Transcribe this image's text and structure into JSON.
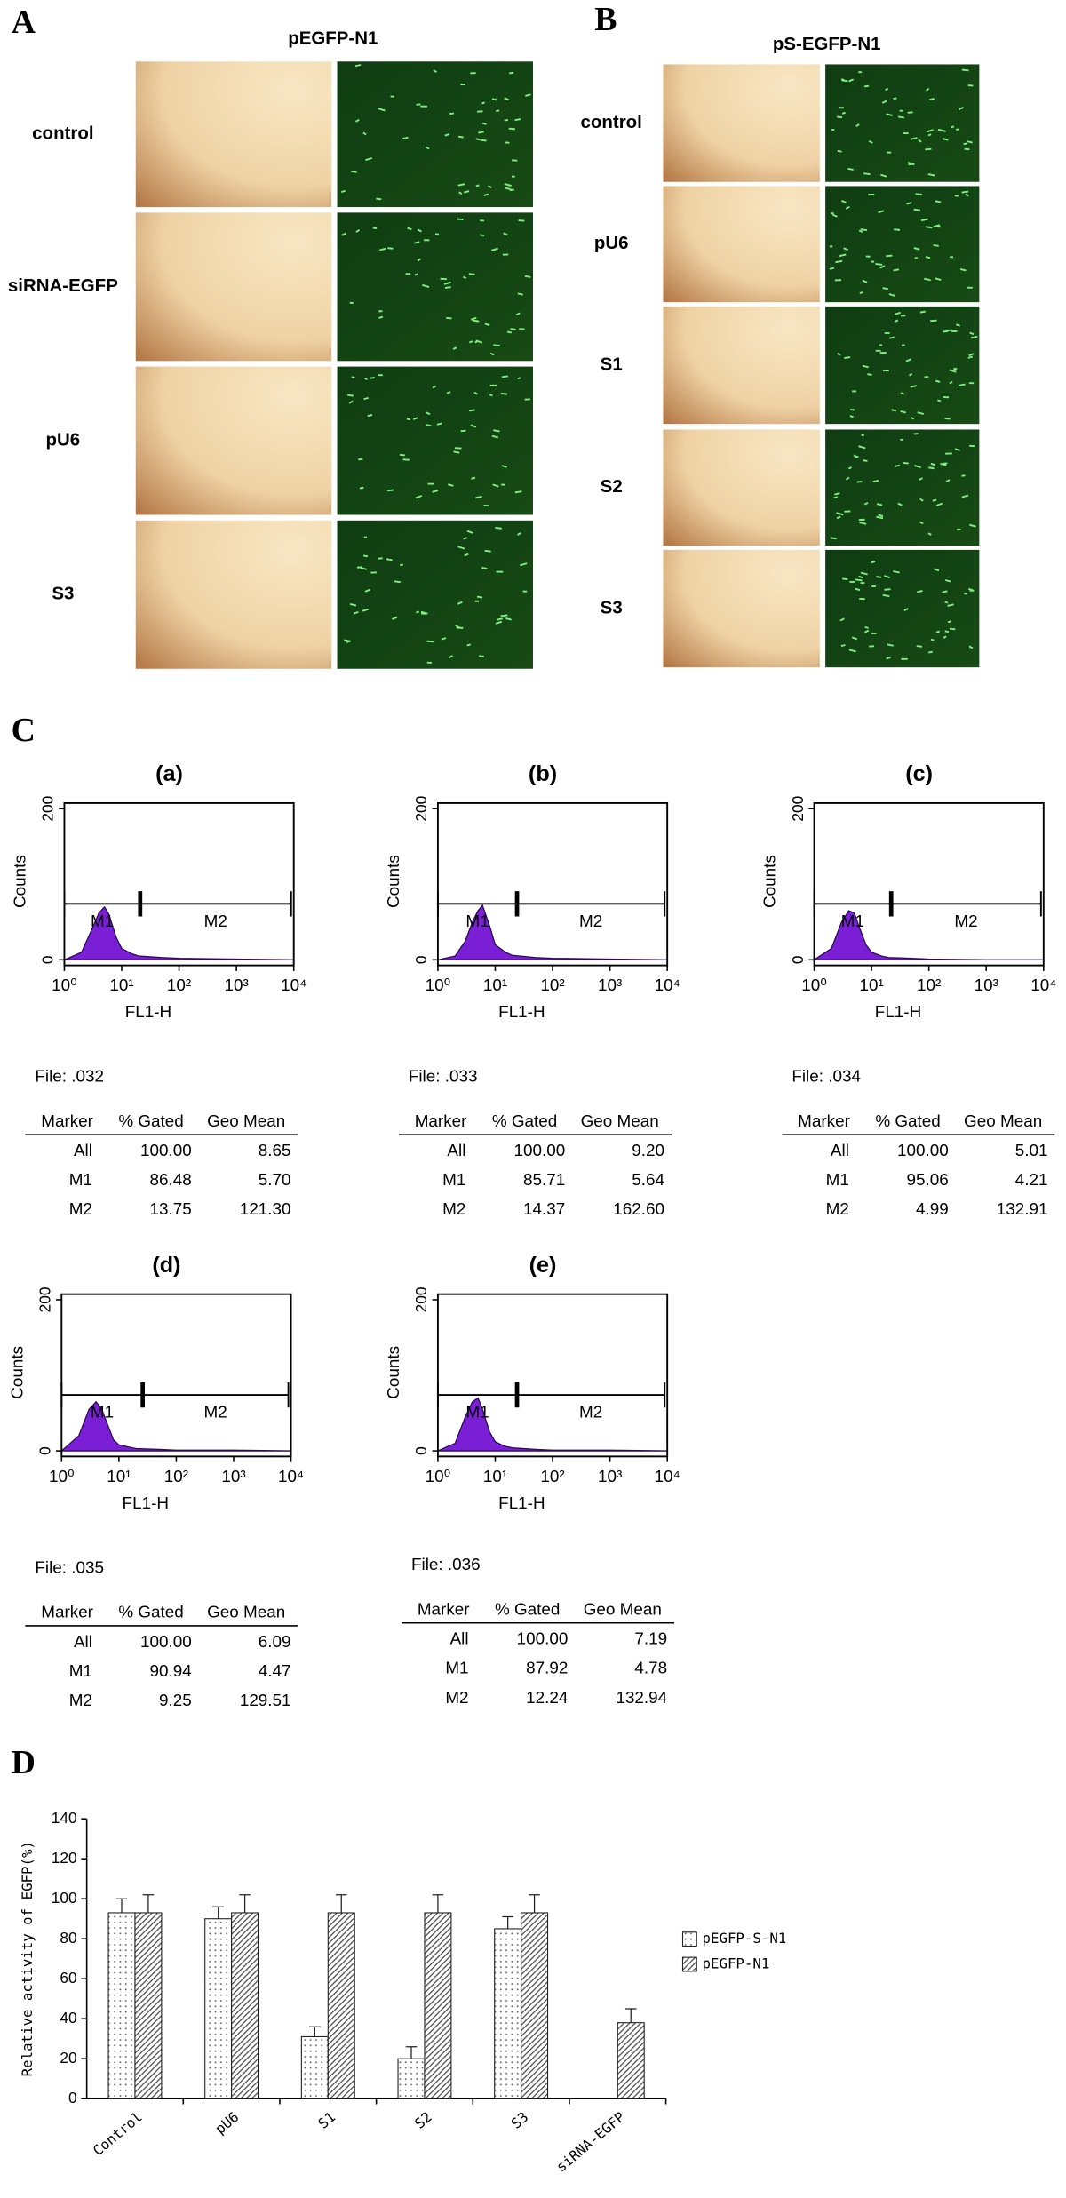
{
  "panels": {
    "A": {
      "letter": "A",
      "title": "pEGFP-N1",
      "rows": [
        "control",
        "siRNA-EGFP",
        "pU6",
        "S3"
      ]
    },
    "B": {
      "letter": "B",
      "title": "pS-EGFP-N1",
      "rows": [
        "control",
        "pU6",
        "S1",
        "S2",
        "S3"
      ]
    },
    "C": {
      "letter": "C"
    },
    "D": {
      "letter": "D"
    }
  },
  "chart_data": [
    {
      "type": "area",
      "title": "(a)",
      "x_label": "FL1-H",
      "y_label": "Counts",
      "xscale": "log",
      "xlim": [
        1,
        10000
      ],
      "xticks": [
        {
          "value": 1,
          "label": "10⁰"
        },
        {
          "value": 10,
          "label": "10¹"
        },
        {
          "value": 100,
          "label": "10²"
        },
        {
          "value": 1000,
          "label": "10³"
        },
        {
          "value": 10000,
          "label": "10⁴"
        }
      ],
      "ylim": [
        0,
        200
      ],
      "yticks": [
        0,
        200
      ],
      "color": "#7a1fd6",
      "x": [
        1,
        2,
        3,
        4,
        5,
        6,
        8,
        10,
        15,
        20,
        50,
        100,
        1000,
        10000
      ],
      "values": [
        0,
        10,
        40,
        62,
        70,
        60,
        30,
        15,
        8,
        5,
        3,
        2,
        1,
        0
      ],
      "markers": [
        {
          "name": "M1",
          "range": [
            1,
            21
          ]
        },
        {
          "name": "M2",
          "range": [
            21,
            9000
          ]
        }
      ],
      "file": "File: .032",
      "table": {
        "header": [
          "Marker",
          "% Gated",
          "Geo Mean"
        ],
        "rows": [
          [
            "All",
            "100.00",
            "8.65"
          ],
          [
            "M1",
            "86.48",
            "5.70"
          ],
          [
            "M2",
            "13.75",
            "121.30"
          ]
        ]
      }
    },
    {
      "type": "area",
      "title": "(b)",
      "x_label": "FL1-H",
      "y_label": "Counts",
      "xscale": "log",
      "xlim": [
        1,
        10000
      ],
      "xticks": [
        {
          "value": 1,
          "label": "10⁰"
        },
        {
          "value": 10,
          "label": "10¹"
        },
        {
          "value": 100,
          "label": "10²"
        },
        {
          "value": 1000,
          "label": "10³"
        },
        {
          "value": 10000,
          "label": "10⁴"
        }
      ],
      "ylim": [
        0,
        200
      ],
      "yticks": [
        0,
        200
      ],
      "color": "#7a1fd6",
      "x": [
        1,
        2,
        3,
        4,
        5,
        6,
        8,
        10,
        15,
        20,
        50,
        100,
        1000,
        10000
      ],
      "values": [
        0,
        5,
        25,
        50,
        65,
        72,
        45,
        20,
        10,
        6,
        3,
        2,
        1,
        0
      ],
      "markers": [
        {
          "name": "M1",
          "range": [
            1,
            24
          ]
        },
        {
          "name": "M2",
          "range": [
            24,
            9000
          ]
        }
      ],
      "file": "File: .033",
      "table": {
        "header": [
          "Marker",
          "% Gated",
          "Geo Mean"
        ],
        "rows": [
          [
            "All",
            "100.00",
            "9.20"
          ],
          [
            "M1",
            "85.71",
            "5.64"
          ],
          [
            "M2",
            "14.37",
            "162.60"
          ]
        ]
      }
    },
    {
      "type": "area",
      "title": "(c)",
      "x_label": "FL1-H",
      "y_label": "Counts",
      "xscale": "log",
      "xlim": [
        1,
        10000
      ],
      "xticks": [
        {
          "value": 1,
          "label": "10⁰"
        },
        {
          "value": 10,
          "label": "10¹"
        },
        {
          "value": 100,
          "label": "10²"
        },
        {
          "value": 1000,
          "label": "10³"
        },
        {
          "value": 10000,
          "label": "10⁴"
        }
      ],
      "ylim": [
        0,
        200
      ],
      "yticks": [
        0,
        200
      ],
      "color": "#7a1fd6",
      "x": [
        1,
        2,
        3,
        4,
        5,
        6,
        8,
        10,
        15,
        20,
        50,
        100,
        1000,
        10000
      ],
      "values": [
        0,
        15,
        50,
        65,
        62,
        45,
        20,
        10,
        5,
        3,
        2,
        1,
        0,
        0
      ],
      "markers": [
        {
          "name": "M1",
          "range": [
            1,
            22
          ]
        },
        {
          "name": "M2",
          "range": [
            22,
            9000
          ]
        }
      ],
      "file": "File: .034",
      "table": {
        "header": [
          "Marker",
          "% Gated",
          "Geo Mean"
        ],
        "rows": [
          [
            "All",
            "100.00",
            "5.01"
          ],
          [
            "M1",
            "95.06",
            "4.21"
          ],
          [
            "M2",
            "4.99",
            "132.91"
          ]
        ]
      }
    },
    {
      "type": "area",
      "title": "(d)",
      "x_label": "FL1-H",
      "y_label": "Counts",
      "xscale": "log",
      "xlim": [
        1,
        10000
      ],
      "xticks": [
        {
          "value": 1,
          "label": "10⁰"
        },
        {
          "value": 10,
          "label": "10¹"
        },
        {
          "value": 100,
          "label": "10²"
        },
        {
          "value": 1000,
          "label": "10³"
        },
        {
          "value": 10000,
          "label": "10⁴"
        }
      ],
      "ylim": [
        0,
        200
      ],
      "yticks": [
        0,
        200
      ],
      "color": "#7a1fd6",
      "x": [
        1,
        2,
        3,
        4,
        5,
        6,
        8,
        10,
        15,
        20,
        50,
        100,
        1000,
        10000
      ],
      "values": [
        0,
        20,
        55,
        65,
        55,
        40,
        15,
        8,
        5,
        3,
        2,
        1,
        1,
        0
      ],
      "markers": [
        {
          "name": "M1",
          "range": [
            1,
            26
          ]
        },
        {
          "name": "M2",
          "range": [
            26,
            9000
          ]
        }
      ],
      "file": "File: .035",
      "table": {
        "header": [
          "Marker",
          "% Gated",
          "Geo Mean"
        ],
        "rows": [
          [
            "All",
            "100.00",
            "6.09"
          ],
          [
            "M1",
            "90.94",
            "4.47"
          ],
          [
            "M2",
            "9.25",
            "129.51"
          ]
        ]
      }
    },
    {
      "type": "area",
      "title": "(e)",
      "x_label": "FL1-H",
      "y_label": "Counts",
      "xscale": "log",
      "xlim": [
        1,
        10000
      ],
      "xticks": [
        {
          "value": 1,
          "label": "10⁰"
        },
        {
          "value": 10,
          "label": "10¹"
        },
        {
          "value": 100,
          "label": "10²"
        },
        {
          "value": 1000,
          "label": "10³"
        },
        {
          "value": 10000,
          "label": "10⁴"
        }
      ],
      "ylim": [
        0,
        200
      ],
      "yticks": [
        0,
        200
      ],
      "color": "#7a1fd6",
      "x": [
        1,
        2,
        3,
        4,
        5,
        6,
        8,
        10,
        15,
        20,
        50,
        100,
        1000,
        10000
      ],
      "values": [
        0,
        10,
        45,
        65,
        70,
        55,
        25,
        12,
        6,
        4,
        2,
        1,
        1,
        0
      ],
      "markers": [
        {
          "name": "M1",
          "range": [
            1,
            24
          ]
        },
        {
          "name": "M2",
          "range": [
            24,
            9000
          ]
        }
      ],
      "file": "File: .036",
      "table": {
        "header": [
          "Marker",
          "% Gated",
          "Geo Mean"
        ],
        "rows": [
          [
            "All",
            "100.00",
            "7.19"
          ],
          [
            "M1",
            "87.92",
            "4.78"
          ],
          [
            "M2",
            "12.24",
            "132.94"
          ]
        ]
      }
    },
    {
      "type": "bar",
      "y_label": "Relative activity of EGFP(%)",
      "categories": [
        "Control",
        "pU6",
        "S1",
        "S2",
        "S3",
        "siRNA-EGFP"
      ],
      "series": [
        {
          "name": "pEGFP-S-N1",
          "color": "#ffffff",
          "pattern": "dots",
          "values": [
            93,
            90,
            31,
            20,
            85,
            null
          ],
          "errors": [
            7,
            6,
            5,
            6,
            6,
            null
          ]
        },
        {
          "name": "pEGFP-N1",
          "color": "#ffffff",
          "pattern": "hatch",
          "values": [
            93,
            93,
            93,
            93,
            93,
            38
          ],
          "errors": [
            9,
            9,
            9,
            9,
            9,
            7
          ]
        }
      ],
      "ylim": [
        0,
        140
      ],
      "yticks": [
        0,
        20,
        40,
        60,
        80,
        100,
        120,
        140
      ],
      "legend": "right"
    }
  ]
}
